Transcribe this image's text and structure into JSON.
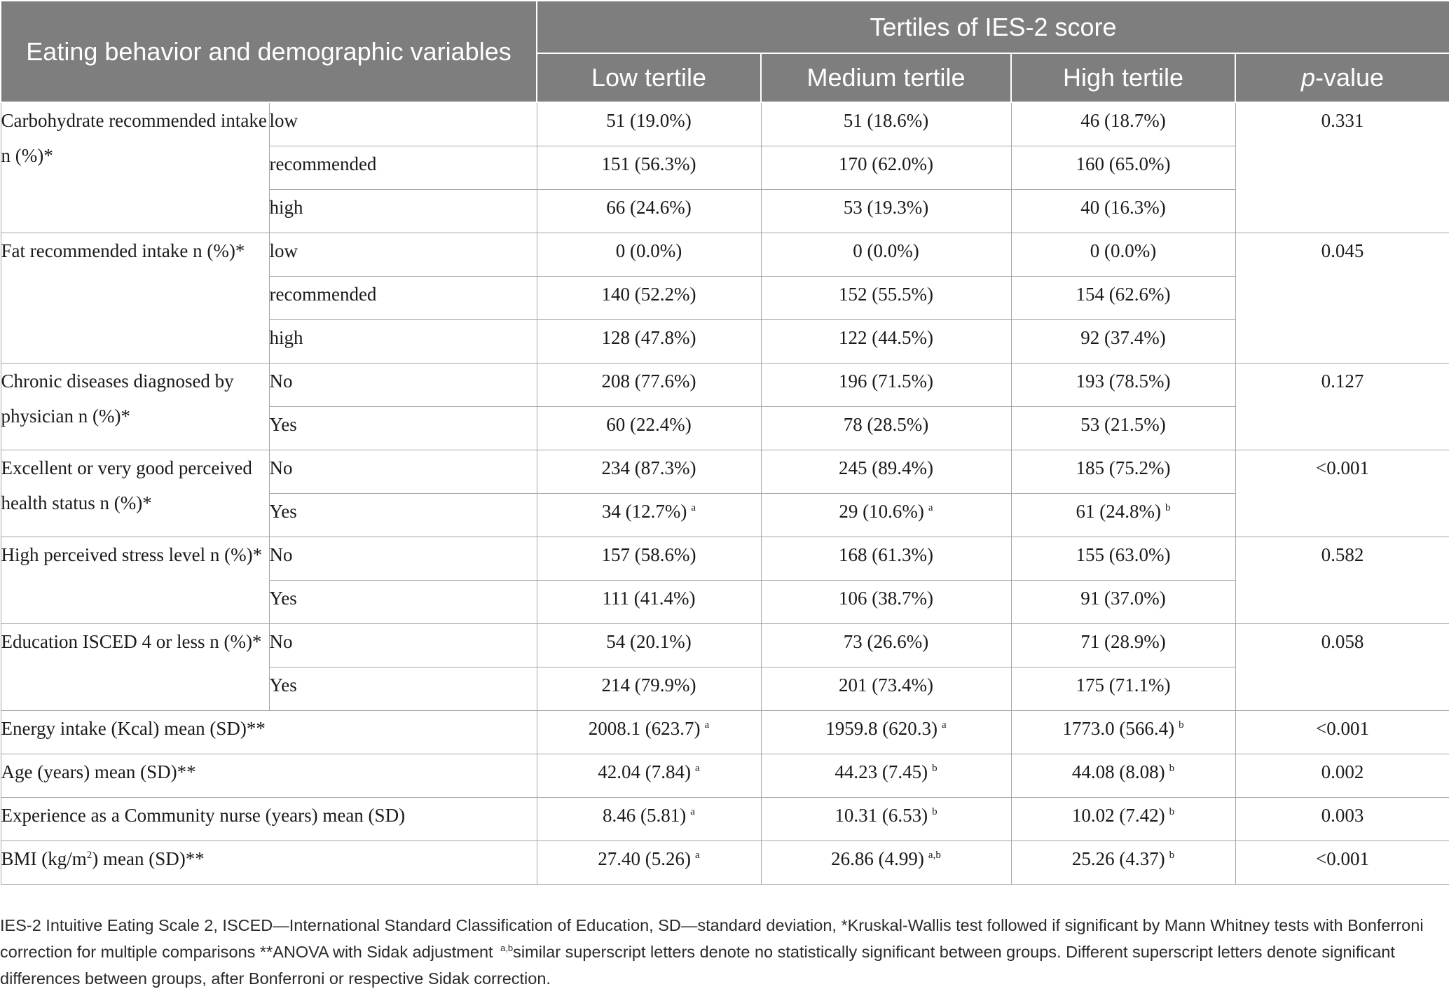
{
  "header": {
    "variables": "Eating behavior and demographic variables",
    "tertiles_title": "Tertiles of IES-2 score",
    "low": "Low tertile",
    "medium": "Medium tertile",
    "high": "High tertile",
    "p_italic": "p",
    "p_rest": "-value"
  },
  "groups": [
    {
      "label": "Carbohydrate recommended intake n (%)*",
      "p": "0.331",
      "rows": [
        {
          "cat": "low",
          "low": "51 (19.0%)",
          "med": "51 (18.6%)",
          "high": "46 (18.7%)"
        },
        {
          "cat": "recommended",
          "low": "151 (56.3%)",
          "med": "170 (62.0%)",
          "high": "160 (65.0%)"
        },
        {
          "cat": "high",
          "low": "66 (24.6%)",
          "med": "53 (19.3%)",
          "high": "40 (16.3%)"
        }
      ]
    },
    {
      "label": "Fat recommended intake n (%)*",
      "p": "0.045",
      "rows": [
        {
          "cat": "low",
          "low": "0 (0.0%)",
          "med": "0 (0.0%)",
          "high": "0 (0.0%)"
        },
        {
          "cat": "recommended",
          "low": "140 (52.2%)",
          "med": "152 (55.5%)",
          "high": "154 (62.6%)"
        },
        {
          "cat": "high",
          "low": "128 (47.8%)",
          "med": "122 (44.5%)",
          "high": "92 (37.4%)"
        }
      ]
    },
    {
      "label": "Chronic diseases diagnosed by physician n (%)*",
      "p": "0.127",
      "rows": [
        {
          "cat": "No",
          "low": "208 (77.6%)",
          "med": "196 (71.5%)",
          "high": "193 (78.5%)"
        },
        {
          "cat": "Yes",
          "low": "60 (22.4%)",
          "med": "78 (28.5%)",
          "high": "53 (21.5%)"
        }
      ]
    },
    {
      "label": "Excellent or very good perceived health status n (%)*",
      "p": "<0.001",
      "rows": [
        {
          "cat": "No",
          "low": "234 (87.3%)",
          "med": "245 (89.4%)",
          "high": "185 (75.2%)"
        },
        {
          "cat": "Yes",
          "low": "34 (12.7%)",
          "low_sup": "a",
          "med": "29 (10.6%)",
          "med_sup": "a",
          "high": "61 (24.8%)",
          "high_sup": "b"
        }
      ]
    },
    {
      "label": "High perceived stress level n (%)*",
      "p": "0.582",
      "rows": [
        {
          "cat": "No",
          "low": "157 (58.6%)",
          "med": "168 (61.3%)",
          "high": "155 (63.0%)"
        },
        {
          "cat": "Yes",
          "low": "111 (41.4%)",
          "med": "106 (38.7%)",
          "high": "91 (37.0%)"
        }
      ]
    },
    {
      "label": "Education ISCED 4 or less n (%)*",
      "p": "0.058",
      "rows": [
        {
          "cat": "No",
          "low": "54 (20.1%)",
          "med": "73 (26.6%)",
          "high": "71 (28.9%)"
        },
        {
          "cat": "Yes",
          "low": "214 (79.9%)",
          "med": "201 (73.4%)",
          "high": "175 (71.1%)"
        }
      ]
    }
  ],
  "single_rows": [
    {
      "label": "Energy intake (Kcal) mean (SD)**",
      "low": "2008.1 (623.7)",
      "low_sup": "a",
      "med": "1959.8 (620.3)",
      "med_sup": "a",
      "high": "1773.0 (566.4)",
      "high_sup": "b",
      "p": "<0.001"
    },
    {
      "label": "Age (years) mean (SD)**",
      "low": "42.04 (7.84)",
      "low_sup": "a",
      "med": "44.23 (7.45)",
      "med_sup": "b",
      "high": "44.08 (8.08)",
      "high_sup": "b",
      "p": "0.002"
    },
    {
      "label": "Experience as a Community nurse (years) mean (SD)",
      "low": "8.46 (5.81)",
      "low_sup": "a",
      "med": "10.31 (6.53)",
      "med_sup": "b",
      "high": "10.02 (7.42)",
      "high_sup": "b",
      "p": "0.003"
    },
    {
      "label_pre": "BMI (kg/m",
      "label_sup": "2",
      "label_post": ") mean (SD)**",
      "low": "27.40 (5.26)",
      "low_sup": "a",
      "med": "26.86 (4.99)",
      "med_sup": "a,b",
      "high": "25.26 (4.37)",
      "high_sup": "b",
      "p": "<0.001"
    }
  ],
  "footnote": {
    "part1": "IES-2 Intuitive Eating Scale 2, ISCED—International Standard Classification of Education, SD—standard deviation, *Kruskal-Wallis test followed if significant by Mann Whitney tests with Bonferroni correction for multiple comparisons **ANOVA with Sidak adjustment",
    "sup": "a,b",
    "part2": "similar superscript letters denote no statistically significant between groups. Different superscript letters denote significant differences between groups, after Bonferroni or respective Sidak correction."
  }
}
